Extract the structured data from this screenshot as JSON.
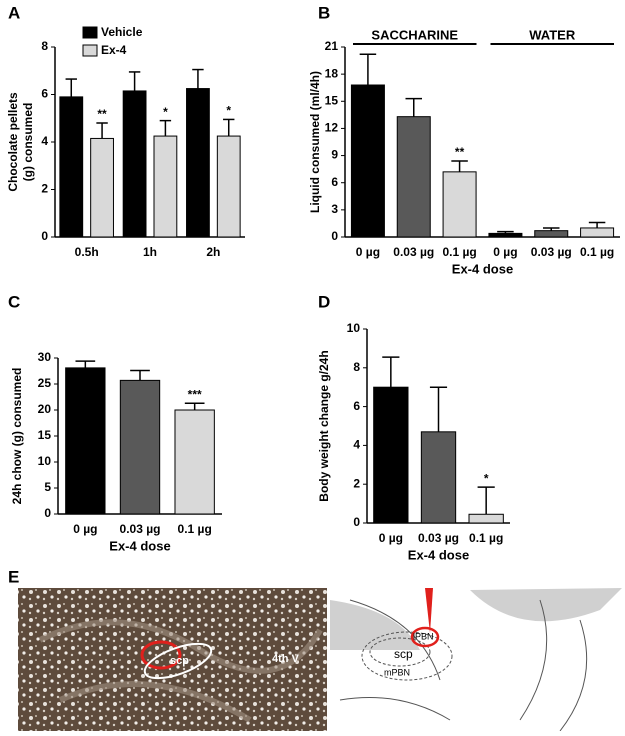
{
  "chart_data": [
    {
      "type": "bar",
      "panel": "A",
      "ylabel": [
        "Chocolate pellets",
        "(g) consumed"
      ],
      "categories": [
        "0.5h",
        "1h",
        "2h"
      ],
      "series": [
        {
          "name": "Vehicle",
          "color": "#000000",
          "values": [
            5.9,
            6.15,
            6.25
          ],
          "errors": [
            0.75,
            0.8,
            0.8
          ]
        },
        {
          "name": "Ex-4",
          "color": "#d9d9d9",
          "values": [
            4.15,
            4.25,
            4.25
          ],
          "errors": [
            0.65,
            0.65,
            0.7
          ],
          "significance": [
            "**",
            "*",
            "*"
          ]
        }
      ],
      "ylim": [
        0,
        8
      ],
      "yticks": [
        0,
        2,
        4,
        6,
        8
      ]
    },
    {
      "type": "bar",
      "panel": "B",
      "ylabel": [
        "Liquid consumed (ml/4h)"
      ],
      "xlabel": "Ex-4 dose",
      "groups": [
        "SACCHARINE",
        "WATER"
      ],
      "categories": [
        "0 µg",
        "0.03 µg",
        "0.1 µg",
        "0 µg",
        "0.03 µg",
        "0.1 µg"
      ],
      "values": [
        16.8,
        13.3,
        7.2,
        0.4,
        0.7,
        1.0
      ],
      "errors": [
        3.4,
        2.0,
        1.2,
        0.2,
        0.3,
        0.6
      ],
      "colors": [
        "#000000",
        "#595959",
        "#d9d9d9",
        "#000000",
        "#595959",
        "#d9d9d9"
      ],
      "significance": [
        null,
        null,
        "**",
        null,
        null,
        null
      ],
      "ylim": [
        0,
        21
      ],
      "yticks": [
        0,
        3,
        6,
        9,
        12,
        15,
        18,
        21
      ]
    },
    {
      "type": "bar",
      "panel": "C",
      "ylabel": [
        "24h chow (g) consumed"
      ],
      "xlabel": "Ex-4 dose",
      "categories": [
        "0 µg",
        "0.03 µg",
        "0.1 µg"
      ],
      "values": [
        28.1,
        25.7,
        20.0
      ],
      "errors": [
        1.3,
        1.9,
        1.3
      ],
      "colors": [
        "#000000",
        "#595959",
        "#d9d9d9"
      ],
      "significance": [
        null,
        null,
        "***"
      ],
      "ylim": [
        0,
        30
      ],
      "yticks": [
        0,
        5,
        10,
        15,
        20,
        25,
        30
      ]
    },
    {
      "type": "bar",
      "panel": "D",
      "ylabel": [
        "Body weight change g/24h"
      ],
      "xlabel": "Ex-4 dose",
      "categories": [
        "0 µg",
        "0.03 µg",
        "0.1 µg"
      ],
      "values": [
        7.0,
        4.7,
        0.45
      ],
      "errors": [
        1.55,
        2.3,
        1.4
      ],
      "colors": [
        "#000000",
        "#595959",
        "#d9d9d9"
      ],
      "significance": [
        null,
        null,
        "*"
      ],
      "ylim": [
        0,
        10
      ],
      "yticks": [
        0,
        2,
        4,
        6,
        8,
        10
      ]
    }
  ],
  "panel_e": {
    "panel": "E",
    "photo_labels": [
      "scp",
      "4th V"
    ],
    "diagram_labels": [
      "lPBN",
      "scp",
      "mPBN"
    ]
  }
}
